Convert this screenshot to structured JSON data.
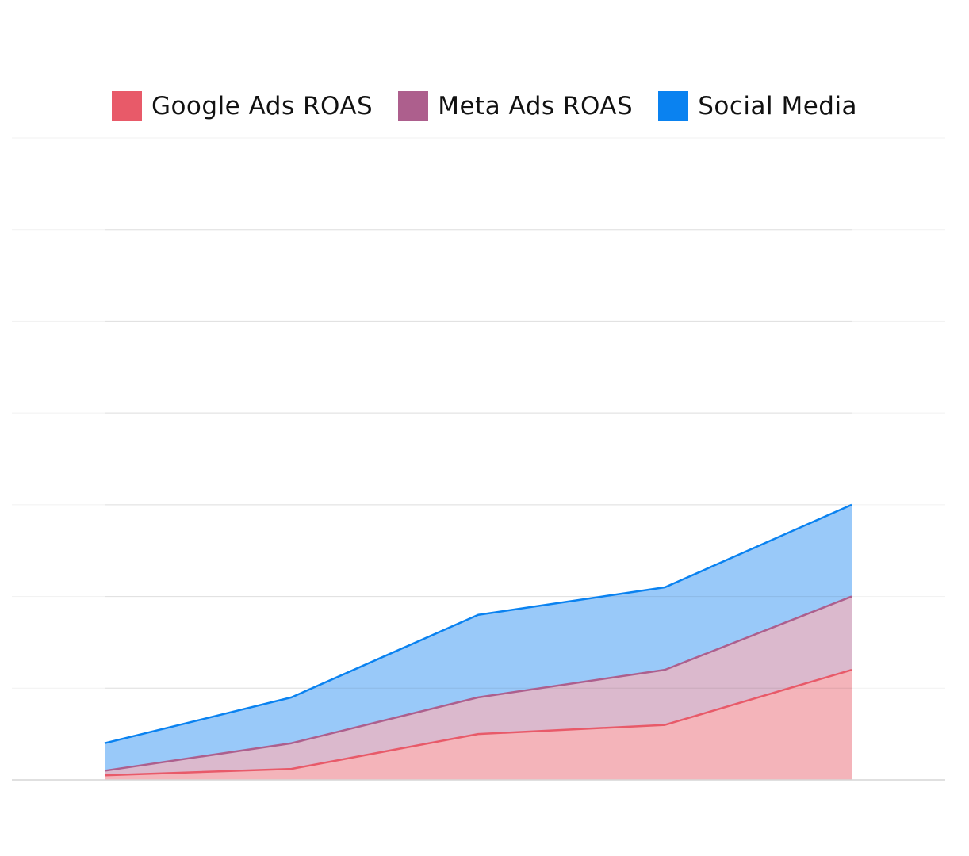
{
  "chart_data": {
    "type": "area",
    "stacked": true,
    "categories": [
      "",
      "",
      "",
      "",
      ""
    ],
    "series": [
      {
        "name": "Google Ads ROAS",
        "values": [
          0.5,
          1.2,
          5.0,
          6.0,
          12.0
        ],
        "color": "#e85a69",
        "fill": "#f4b4ba"
      },
      {
        "name": "Meta Ads ROAS",
        "values": [
          1.0,
          4.0,
          9.0,
          12.0,
          20.0
        ],
        "color": "#ad5f8d",
        "fill": "#dbb9cd"
      },
      {
        "name": "Social Media",
        "values": [
          4.0,
          9.0,
          18.0,
          21.0,
          30.0
        ],
        "color": "#0a82f0",
        "fill": "#99c9f9"
      }
    ],
    "ylim": [
      0,
      70
    ],
    "grid": true,
    "legend_position": "top-center",
    "title": "",
    "xlabel": "",
    "ylabel": ""
  }
}
